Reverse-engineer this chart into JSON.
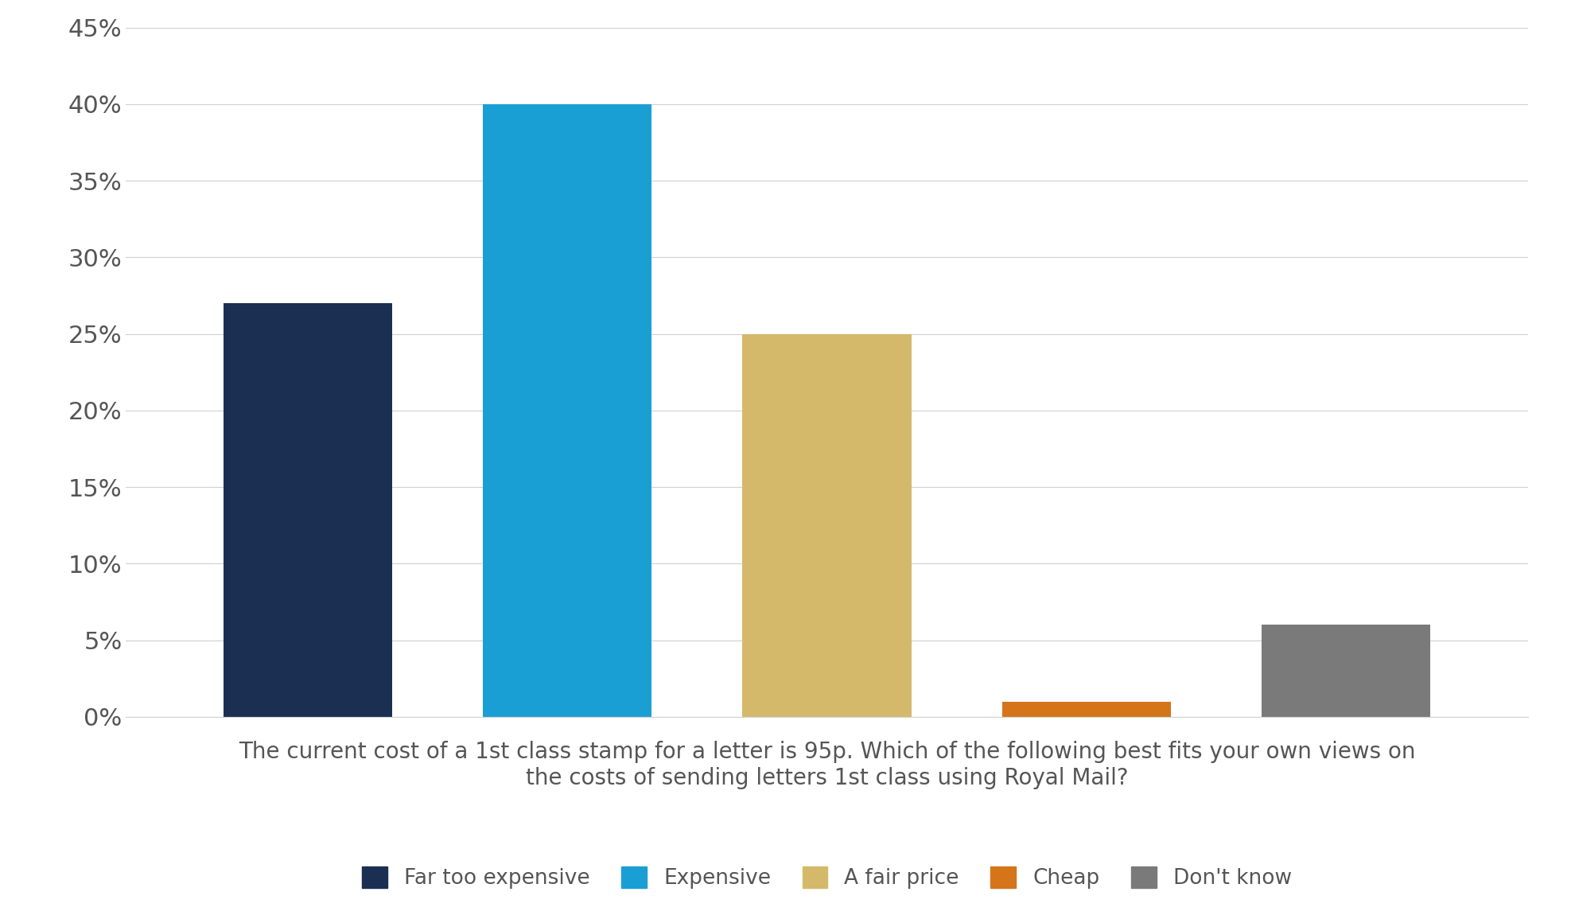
{
  "categories": [
    "Far too expensive",
    "Expensive",
    "A fair price",
    "Cheap",
    "Don't know"
  ],
  "values": [
    27,
    40,
    25,
    1,
    6
  ],
  "bar_colors": [
    "#1a2f52",
    "#1a9fd4",
    "#d4b96a",
    "#d4751a",
    "#7a7a7a"
  ],
  "ylim": [
    0,
    45
  ],
  "yticks": [
    0,
    5,
    10,
    15,
    20,
    25,
    30,
    35,
    40,
    45
  ],
  "ytick_labels": [
    "0%",
    "5%",
    "10%",
    "15%",
    "20%",
    "25%",
    "30%",
    "35%",
    "40%",
    "45%"
  ],
  "xlabel_line1": "The current cost of a 1st class stamp for a letter is 95p. Which of the following best fits your own views on",
  "xlabel_line2": "the costs of sending letters 1st class using Royal Mail?",
  "background_color": "#ffffff",
  "grid_color": "#d0d0d0",
  "legend_labels": [
    "Far too expensive",
    "Expensive",
    "A fair price",
    "Cheap",
    "Don't know"
  ],
  "tick_fontsize": 22,
  "xlabel_fontsize": 20,
  "legend_fontsize": 19,
  "bar_width": 0.65,
  "x_positions": [
    0,
    1,
    2,
    3,
    4
  ]
}
